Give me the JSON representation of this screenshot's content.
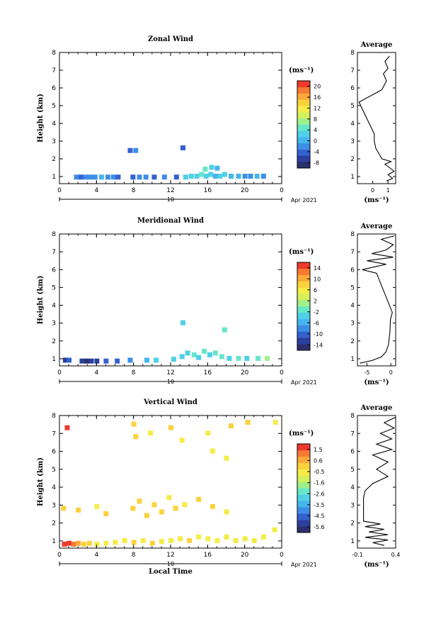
{
  "chart_data": [
    {
      "type": "heatmap",
      "title": "Zonal Wind",
      "ylabel": "Height (km)",
      "xlabel": "",
      "x_ticks": [
        "0",
        "4",
        "8",
        "12",
        "16",
        "20",
        "0"
      ],
      "xlim": [
        0,
        24
      ],
      "y_ticks": [
        "1",
        "2",
        "3",
        "4",
        "5",
        "6",
        "7",
        "8"
      ],
      "ylim": [
        0.6,
        8
      ],
      "date_label": "10",
      "month_label": "Apr 2021",
      "colorbar": {
        "unit": "(ms⁻¹)",
        "ticks": [
          "20",
          "16",
          "12",
          "8",
          "4",
          "0",
          "-4",
          "-8"
        ],
        "range": [
          -10,
          22
        ],
        "colors": [
          "#2a2f6e",
          "#2b3f9e",
          "#3461d0",
          "#3d8ee6",
          "#46b5ee",
          "#4fd0e6",
          "#68e6c8",
          "#9ff08a",
          "#d4f05a",
          "#f5ec48",
          "#fbd23e",
          "#fbaa38",
          "#f77a32",
          "#ee3a2c"
        ]
      },
      "cells": [
        [
          1.8,
          0.95,
          3
        ],
        [
          2.3,
          0.95,
          2
        ],
        [
          2.8,
          0.95,
          3
        ],
        [
          3.3,
          0.95,
          3
        ],
        [
          3.8,
          0.95,
          3
        ],
        [
          4.5,
          0.95,
          4
        ],
        [
          5.2,
          0.95,
          3
        ],
        [
          5.8,
          0.95,
          3
        ],
        [
          6.3,
          0.95,
          2
        ],
        [
          7.9,
          0.95,
          2
        ],
        [
          8.6,
          0.95,
          3
        ],
        [
          9.3,
          0.95,
          3
        ],
        [
          10.2,
          0.95,
          2
        ],
        [
          11.3,
          0.95,
          3
        ],
        [
          12.6,
          0.95,
          2
        ],
        [
          13.6,
          0.95,
          5
        ],
        [
          14.2,
          1.0,
          5
        ],
        [
          14.8,
          1.0,
          5
        ],
        [
          15.3,
          1.1,
          6
        ],
        [
          15.8,
          1.0,
          5
        ],
        [
          16.3,
          1.1,
          5
        ],
        [
          16.8,
          1.0,
          4
        ],
        [
          17.3,
          1.0,
          5
        ],
        [
          17.8,
          1.1,
          5
        ],
        [
          18.5,
          1.0,
          4
        ],
        [
          19.3,
          1.0,
          4
        ],
        [
          20.0,
          1.0,
          3
        ],
        [
          20.6,
          1.0,
          3
        ],
        [
          21.3,
          1.0,
          4
        ],
        [
          22.0,
          1.0,
          3
        ],
        [
          7.6,
          2.45,
          2
        ],
        [
          8.2,
          2.45,
          3
        ],
        [
          13.3,
          2.6,
          2
        ],
        [
          15.7,
          1.4,
          6
        ],
        [
          16.4,
          1.5,
          5
        ],
        [
          17.0,
          1.45,
          4
        ]
      ],
      "profile": {
        "xlim": [
          -1,
          1.5
        ],
        "x_ticks": [
          "0",
          "1"
        ],
        "xlabel": "(ms⁻¹)",
        "title": "Average",
        "points": [
          [
            0.9,
            0.75
          ],
          [
            1.3,
            0.9
          ],
          [
            1.0,
            1.1
          ],
          [
            1.4,
            1.3
          ],
          [
            1.1,
            1.5
          ],
          [
            0.8,
            1.7
          ],
          [
            1.2,
            1.85
          ],
          [
            0.6,
            2.0
          ],
          [
            0.4,
            2.3
          ],
          [
            0.2,
            2.6
          ],
          [
            0.1,
            3.0
          ],
          [
            0.1,
            3.4
          ],
          [
            -0.9,
            5.2
          ],
          [
            0.6,
            5.9
          ],
          [
            0.9,
            6.4
          ],
          [
            0.7,
            6.8
          ],
          [
            1.0,
            7.1
          ],
          [
            0.8,
            7.5
          ],
          [
            1.1,
            7.8
          ]
        ]
      }
    },
    {
      "type": "heatmap",
      "title": "Meridional Wind",
      "ylabel": "Height (km)",
      "xlabel": "",
      "x_ticks": [
        "0",
        "4",
        "8",
        "12",
        "16",
        "20",
        "0"
      ],
      "xlim": [
        0,
        24
      ],
      "y_ticks": [
        "1",
        "2",
        "3",
        "4",
        "5",
        "6",
        "7",
        "8"
      ],
      "ylim": [
        0.6,
        8
      ],
      "date_label": "10",
      "month_label": "Apr 2021",
      "colorbar": {
        "unit": "(ms⁻¹)",
        "ticks": [
          "14",
          "10",
          "6",
          "2",
          "-2",
          "-6",
          "-10",
          "-14"
        ],
        "range": [
          -16,
          16
        ],
        "colors": [
          "#2a2f6e",
          "#2b3f9e",
          "#3461d0",
          "#3d8ee6",
          "#46b5ee",
          "#4fd0e6",
          "#68e6c8",
          "#9ff08a",
          "#d4f05a",
          "#f5ec48",
          "#fbd23e",
          "#fbaa38",
          "#f77a32",
          "#ee3a2c"
        ]
      },
      "cells": [
        [
          0.6,
          0.9,
          1
        ],
        [
          1.0,
          0.9,
          2
        ],
        [
          2.4,
          0.85,
          1
        ],
        [
          2.9,
          0.85,
          0
        ],
        [
          3.4,
          0.85,
          1
        ],
        [
          4.0,
          0.85,
          1
        ],
        [
          5.0,
          0.85,
          2
        ],
        [
          6.2,
          0.85,
          2
        ],
        [
          7.6,
          0.9,
          3
        ],
        [
          9.4,
          0.9,
          4
        ],
        [
          10.4,
          0.9,
          5
        ],
        [
          12.3,
          0.95,
          5
        ],
        [
          13.2,
          1.1,
          5
        ],
        [
          13.8,
          1.3,
          5
        ],
        [
          14.5,
          1.2,
          6
        ],
        [
          15.0,
          1.05,
          5
        ],
        [
          15.6,
          1.4,
          6
        ],
        [
          16.2,
          1.2,
          5
        ],
        [
          16.8,
          1.3,
          6
        ],
        [
          17.5,
          1.1,
          6
        ],
        [
          18.3,
          1.0,
          5
        ],
        [
          19.3,
          1.0,
          6
        ],
        [
          20.2,
          1.0,
          5
        ],
        [
          21.4,
          1.0,
          6
        ],
        [
          22.4,
          1.0,
          7
        ],
        [
          13.3,
          3.0,
          5
        ],
        [
          17.8,
          2.6,
          6
        ]
      ],
      "profile": {
        "xlim": [
          -7,
          1
        ],
        "x_ticks": [
          "-5",
          "0"
        ],
        "xlabel": "(ms⁻¹)",
        "title": "Average",
        "points": [
          [
            -6.5,
            0.75
          ],
          [
            -4,
            0.9
          ],
          [
            -2,
            1.1
          ],
          [
            -1,
            1.4
          ],
          [
            -0.5,
            1.8
          ],
          [
            -0.2,
            2.5
          ],
          [
            -0.1,
            3.2
          ],
          [
            0.3,
            3.6
          ],
          [
            -3,
            5.8
          ],
          [
            -6,
            6.0
          ],
          [
            -1,
            6.3
          ],
          [
            -5,
            6.5
          ],
          [
            0.5,
            6.7
          ],
          [
            -4,
            6.9
          ],
          [
            -1,
            7.1
          ],
          [
            0.5,
            7.4
          ],
          [
            -2,
            7.7
          ],
          [
            0.8,
            7.9
          ]
        ]
      }
    },
    {
      "type": "heatmap",
      "title": "Vertical Wind",
      "ylabel": "Height (km)",
      "xlabel": "Local Time",
      "x_ticks": [
        "0",
        "4",
        "8",
        "12",
        "16",
        "20",
        "0"
      ],
      "xlim": [
        0,
        24
      ],
      "y_ticks": [
        "1",
        "2",
        "3",
        "4",
        "5",
        "6",
        "7",
        "8"
      ],
      "ylim": [
        0.6,
        8
      ],
      "date_label": "10",
      "month_label": "Apr 2021",
      "colorbar": {
        "unit": "(ms⁻¹)",
        "ticks": [
          "1.5",
          "0.6",
          "-0.5",
          "-1.6",
          "-2.6",
          "-3.5",
          "-4.5",
          "-5.6"
        ],
        "range": [
          -6,
          2
        ],
        "colors": [
          "#2a2f6e",
          "#2b3f9e",
          "#3461d0",
          "#3d8ee6",
          "#46b5ee",
          "#4fd0e6",
          "#68e6c8",
          "#9ff08a",
          "#d4f05a",
          "#f5ec48",
          "#fbd23e",
          "#fbaa38",
          "#f77a32",
          "#ee3a2c"
        ]
      },
      "cells": [
        [
          0.5,
          0.8,
          13
        ],
        [
          1.0,
          0.85,
          13
        ],
        [
          1.5,
          0.8,
          12
        ],
        [
          2.0,
          0.85,
          11
        ],
        [
          2.6,
          0.8,
          10
        ],
        [
          3.2,
          0.85,
          10
        ],
        [
          4.0,
          0.8,
          9
        ],
        [
          5.0,
          0.85,
          9
        ],
        [
          6.0,
          0.9,
          9
        ],
        [
          7.0,
          1.0,
          9
        ],
        [
          8.0,
          0.9,
          10
        ],
        [
          9.0,
          1.0,
          9
        ],
        [
          10.0,
          0.85,
          10
        ],
        [
          11.0,
          0.95,
          9
        ],
        [
          12.0,
          1.0,
          9
        ],
        [
          13.0,
          1.1,
          9
        ],
        [
          14.0,
          1.0,
          10
        ],
        [
          15.0,
          1.2,
          9
        ],
        [
          16.0,
          1.1,
          9
        ],
        [
          17.0,
          1.0,
          9
        ],
        [
          18.0,
          1.2,
          9
        ],
        [
          19.0,
          1.0,
          9
        ],
        [
          20.0,
          1.1,
          9
        ],
        [
          21.0,
          1.0,
          9
        ],
        [
          22.0,
          1.2,
          9
        ],
        [
          23.2,
          1.6,
          9
        ],
        [
          0.8,
          7.3,
          13
        ],
        [
          8.0,
          7.5,
          10
        ],
        [
          8.2,
          6.8,
          10
        ],
        [
          9.8,
          7.0,
          9
        ],
        [
          12.0,
          7.3,
          10
        ],
        [
          13.2,
          6.6,
          9
        ],
        [
          16.0,
          7.0,
          9
        ],
        [
          18.5,
          7.4,
          10
        ],
        [
          20.3,
          7.6,
          10
        ],
        [
          23.3,
          7.6,
          9
        ],
        [
          16.5,
          6.0,
          9
        ],
        [
          18.0,
          5.6,
          9
        ],
        [
          7.9,
          2.8,
          10
        ],
        [
          8.6,
          3.2,
          10
        ],
        [
          9.4,
          2.4,
          10
        ],
        [
          10.2,
          3.0,
          10
        ],
        [
          11.0,
          2.6,
          10
        ],
        [
          11.8,
          3.4,
          9
        ],
        [
          12.5,
          2.8,
          10
        ],
        [
          13.5,
          3.0,
          9
        ],
        [
          15.0,
          3.3,
          10
        ],
        [
          16.5,
          2.9,
          10
        ],
        [
          18.0,
          2.6,
          9
        ],
        [
          0.4,
          2.8,
          10
        ],
        [
          2.0,
          2.7,
          10
        ],
        [
          4.0,
          2.9,
          9
        ],
        [
          5.0,
          2.5,
          10
        ]
      ],
      "profile": {
        "xlim": [
          -0.1,
          0.4
        ],
        "x_ticks": [
          "-0.1",
          "0.4"
        ],
        "xlabel": "(ms⁻¹)",
        "title": "Average",
        "points": [
          [
            0.25,
            0.75
          ],
          [
            0.1,
            0.9
          ],
          [
            0.3,
            1.05
          ],
          [
            0.0,
            1.2
          ],
          [
            0.3,
            1.35
          ],
          [
            0.05,
            1.5
          ],
          [
            0.25,
            1.65
          ],
          [
            0.0,
            1.8
          ],
          [
            0.2,
            1.95
          ],
          [
            -0.02,
            2.1
          ],
          [
            -0.02,
            2.6
          ],
          [
            -0.02,
            3.4
          ],
          [
            0.0,
            3.8
          ],
          [
            0.1,
            4.2
          ],
          [
            0.3,
            4.6
          ],
          [
            0.15,
            5.0
          ],
          [
            0.3,
            5.4
          ],
          [
            0.1,
            5.8
          ],
          [
            0.35,
            6.1
          ],
          [
            0.15,
            6.4
          ],
          [
            0.35,
            6.7
          ],
          [
            0.2,
            7.0
          ],
          [
            0.38,
            7.3
          ],
          [
            0.25,
            7.6
          ],
          [
            0.4,
            7.9
          ]
        ]
      }
    }
  ]
}
